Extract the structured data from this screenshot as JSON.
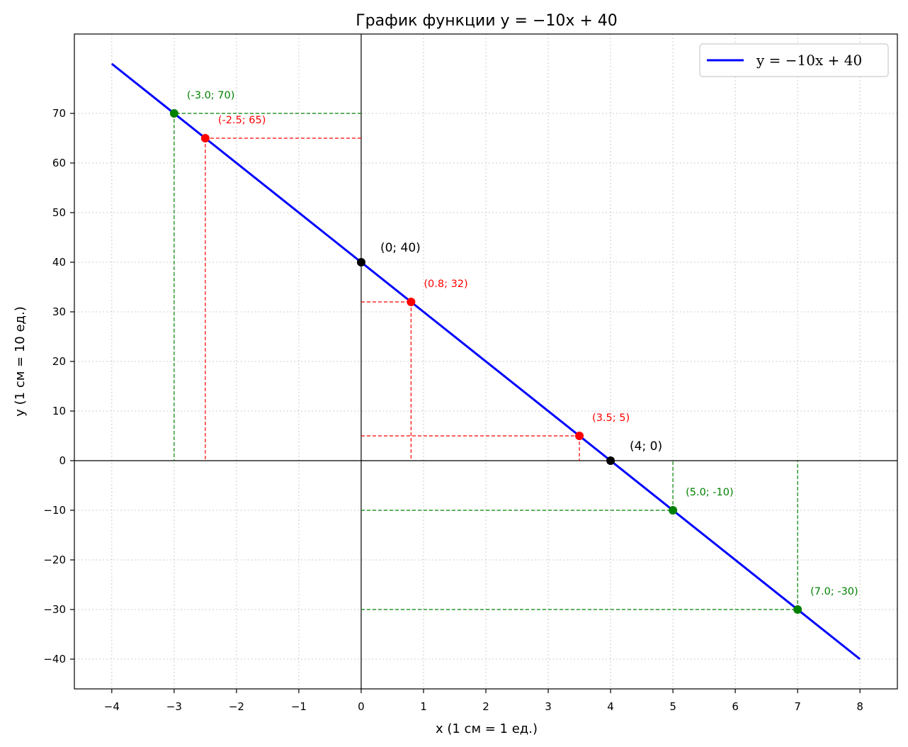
{
  "chart_data": {
    "type": "line",
    "title": "График функции y = −10x + 40",
    "xlabel": "x (1 см = 1 ед.)",
    "ylabel": "y (1 см = 10 ед.)",
    "xlim": [
      -4.6,
      8.6
    ],
    "ylim": [
      -46,
      86
    ],
    "x_ticks": [
      -4,
      -3,
      -2,
      -1,
      0,
      1,
      2,
      3,
      4,
      5,
      6,
      7,
      8
    ],
    "y_ticks": [
      -40,
      -30,
      -20,
      -10,
      0,
      10,
      20,
      30,
      40,
      50,
      60,
      70
    ],
    "x_tick_labels": [
      "−4",
      "−3",
      "−2",
      "−1",
      "0",
      "1",
      "2",
      "3",
      "4",
      "5",
      "6",
      "7",
      "8"
    ],
    "y_tick_labels": [
      "−40",
      "−30",
      "−20",
      "−10",
      "0",
      "10",
      "20",
      "30",
      "40",
      "50",
      "60",
      "70"
    ],
    "grid": true,
    "legend_position": "top-right",
    "series": [
      {
        "name": "y = −10x + 40",
        "x": [
          -4,
          8
        ],
        "y": [
          80,
          -40
        ],
        "color": "#0000ff"
      }
    ],
    "points": [
      {
        "x": 0,
        "y": 40,
        "label": "(0; 40)",
        "color": "#000000",
        "guides": false
      },
      {
        "x": 4,
        "y": 0,
        "label": "(4; 0)",
        "color": "#000000",
        "guides": false
      },
      {
        "x": -2.5,
        "y": 65,
        "label": "(-2.5; 65)",
        "color": "#ff0000",
        "guides": true
      },
      {
        "x": 0.8,
        "y": 32,
        "label": "(0.8; 32)",
        "color": "#ff0000",
        "guides": true
      },
      {
        "x": 3.5,
        "y": 5,
        "label": "(3.5; 5)",
        "color": "#ff0000",
        "guides": true
      },
      {
        "x": -3,
        "y": 70,
        "label": "(-3.0; 70)",
        "color": "#008000",
        "guides": true
      },
      {
        "x": 5,
        "y": -10,
        "label": "(5.0; -10)",
        "color": "#008000",
        "guides": true
      },
      {
        "x": 7,
        "y": -30,
        "label": "(7.0; -30)",
        "color": "#008000",
        "guides": true
      }
    ]
  }
}
